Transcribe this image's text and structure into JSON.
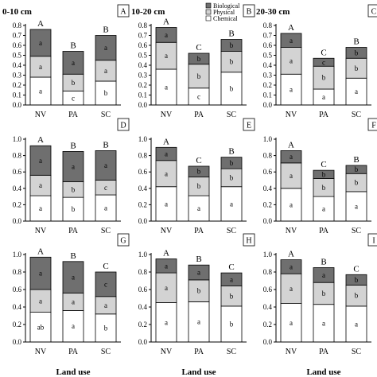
{
  "chart_data": {
    "type": "stacked-bar",
    "stack_order": [
      "Chemical",
      "Physical",
      "Biological"
    ],
    "legend": [
      "Biological",
      "Physical",
      "Chemical"
    ],
    "colors": {
      "Biological": "#6f6f6f",
      "Physical": "#d3d3d3",
      "Chemical": "#ffffff"
    },
    "categories": [
      "NV",
      "PA",
      "SC"
    ],
    "depths": [
      "0-10 cm",
      "10-20 cm",
      "20-30 cm"
    ],
    "xlabel": "Land use",
    "panels": [
      {
        "id": "A",
        "row": 0,
        "col": 0,
        "ylim": [
          0,
          0.8
        ],
        "yticks": [
          "0.0",
          "0.1",
          "0.2",
          "0.3",
          "0.4",
          "0.5",
          "0.6",
          "0.7",
          "0.8"
        ],
        "bars": [
          {
            "cat": "NV",
            "top": "A",
            "values": [
              0.28,
              0.21,
              0.27
            ],
            "letters": [
              "a",
              "a",
              "a"
            ]
          },
          {
            "cat": "PA",
            "top": "B",
            "values": [
              0.14,
              0.17,
              0.23
            ],
            "letters": [
              "c",
              "b",
              "a"
            ]
          },
          {
            "cat": "SC",
            "top": "B",
            "values": [
              0.24,
              0.21,
              0.25
            ],
            "letters": [
              "b",
              "a",
              "a"
            ]
          }
        ]
      },
      {
        "id": "B",
        "row": 0,
        "col": 1,
        "ylim": [
          0,
          0.8
        ],
        "yticks": [
          "0.0",
          "0.1",
          "0.2",
          "0.3",
          "0.4",
          "0.5",
          "0.6",
          "0.7",
          "0.8"
        ],
        "bars": [
          {
            "cat": "NV",
            "top": "A",
            "values": [
              0.36,
              0.27,
              0.15
            ],
            "letters": [
              "a",
              "a",
              "a"
            ]
          },
          {
            "cat": "PA",
            "top": "C",
            "values": [
              0.17,
              0.24,
              0.11
            ],
            "letters": [
              "c",
              "b",
              "b"
            ]
          },
          {
            "cat": "SC",
            "top": "B",
            "values": [
              0.33,
              0.21,
              0.12
            ],
            "letters": [
              "b",
              "b",
              "b"
            ]
          }
        ]
      },
      {
        "id": "C",
        "row": 0,
        "col": 2,
        "ylim": [
          0,
          0.8
        ],
        "yticks": [
          "0.0",
          "0.1",
          "0.2",
          "0.3",
          "0.4",
          "0.5",
          "0.6",
          "0.7",
          "0.8"
        ],
        "bars": [
          {
            "cat": "NV",
            "top": "A",
            "values": [
              0.31,
              0.27,
              0.14
            ],
            "letters": [
              "a",
              "a",
              "a"
            ]
          },
          {
            "cat": "PA",
            "top": "C",
            "values": [
              0.16,
              0.23,
              0.08
            ],
            "letters": [
              "a",
              "b",
              "c"
            ]
          },
          {
            "cat": "SC",
            "top": "B",
            "values": [
              0.27,
              0.2,
              0.11
            ],
            "letters": [
              "a",
              "b",
              "b"
            ]
          }
        ]
      },
      {
        "id": "D",
        "row": 1,
        "col": 0,
        "ylim": [
          0,
          1.0
        ],
        "yticks": [
          "0.0",
          "0.2",
          "0.4",
          "0.6",
          "0.8",
          "1.0"
        ],
        "bars": [
          {
            "cat": "NV",
            "top": "A",
            "values": [
              0.31,
              0.25,
              0.36
            ],
            "letters": [
              "a",
              "a",
              "a"
            ]
          },
          {
            "cat": "PA",
            "top": "B",
            "values": [
              0.29,
              0.19,
              0.37
            ],
            "letters": [
              "b",
              "b",
              "a"
            ]
          },
          {
            "cat": "SC",
            "top": "B",
            "values": [
              0.32,
              0.18,
              0.36
            ],
            "letters": [
              "a",
              "c",
              "a"
            ]
          }
        ]
      },
      {
        "id": "E",
        "row": 1,
        "col": 1,
        "ylim": [
          0,
          1.0
        ],
        "yticks": [
          "0.0",
          "0.2",
          "0.4",
          "0.6",
          "0.8",
          "1.0"
        ],
        "bars": [
          {
            "cat": "NV",
            "top": "A",
            "values": [
              0.42,
              0.32,
              0.16
            ],
            "letters": [
              "a",
              "a",
              "a"
            ]
          },
          {
            "cat": "PA",
            "top": "C",
            "values": [
              0.31,
              0.23,
              0.13
            ],
            "letters": [
              "a",
              "b",
              "b"
            ]
          },
          {
            "cat": "SC",
            "top": "B",
            "values": [
              0.42,
              0.22,
              0.14
            ],
            "letters": [
              "a",
              "b",
              "b"
            ]
          }
        ]
      },
      {
        "id": "F",
        "row": 1,
        "col": 2,
        "ylim": [
          0,
          1.0
        ],
        "yticks": [
          "0.0",
          "0.2",
          "0.4",
          "0.6",
          "0.8",
          "1.0"
        ],
        "bars": [
          {
            "cat": "NV",
            "top": "A",
            "values": [
              0.4,
              0.31,
              0.15
            ],
            "letters": [
              "a",
              "a",
              "a"
            ]
          },
          {
            "cat": "PA",
            "top": "C",
            "values": [
              0.3,
              0.22,
              0.1
            ],
            "letters": [
              "a",
              "b",
              "b"
            ]
          },
          {
            "cat": "SC",
            "top": "B",
            "values": [
              0.36,
              0.22,
              0.1
            ],
            "letters": [
              "a",
              "b",
              "b"
            ]
          }
        ]
      },
      {
        "id": "G",
        "row": 2,
        "col": 0,
        "ylim": [
          0,
          1.0
        ],
        "yticks": [
          "0.0",
          "0.2",
          "0.4",
          "0.6",
          "0.8",
          "1.0"
        ],
        "bars": [
          {
            "cat": "NV",
            "top": "A",
            "values": [
              0.34,
              0.26,
              0.37
            ],
            "letters": [
              "ab",
              "a",
              "a"
            ]
          },
          {
            "cat": "PA",
            "top": "B",
            "values": [
              0.36,
              0.2,
              0.36
            ],
            "letters": [
              "a",
              "a",
              "a"
            ]
          },
          {
            "cat": "SC",
            "top": "C",
            "values": [
              0.32,
              0.2,
              0.28
            ],
            "letters": [
              "b",
              "a",
              "c"
            ]
          }
        ]
      },
      {
        "id": "H",
        "row": 2,
        "col": 1,
        "ylim": [
          0,
          1.0
        ],
        "yticks": [
          "0.0",
          "0.2",
          "0.4",
          "0.6",
          "0.8",
          "1.0"
        ],
        "bars": [
          {
            "cat": "NV",
            "top": "A",
            "values": [
              0.45,
              0.34,
              0.16
            ],
            "letters": [
              "a",
              "a",
              "a"
            ]
          },
          {
            "cat": "PA",
            "top": "B",
            "values": [
              0.46,
              0.25,
              0.17
            ],
            "letters": [
              "a",
              "b",
              "a"
            ]
          },
          {
            "cat": "SC",
            "top": "C",
            "values": [
              0.41,
              0.23,
              0.15
            ],
            "letters": [
              "b",
              "b",
              "a"
            ]
          }
        ]
      },
      {
        "id": "I",
        "row": 2,
        "col": 2,
        "ylim": [
          0,
          1.0
        ],
        "yticks": [
          "0.0",
          "0.2",
          "0.4",
          "0.6",
          "0.8",
          "1.0"
        ],
        "bars": [
          {
            "cat": "NV",
            "top": "A",
            "values": [
              0.44,
              0.34,
              0.16
            ],
            "letters": [
              "a",
              "a",
              "a"
            ]
          },
          {
            "cat": "PA",
            "top": "B",
            "values": [
              0.43,
              0.25,
              0.17
            ],
            "letters": [
              "a",
              "b",
              "a"
            ]
          },
          {
            "cat": "SC",
            "top": "C",
            "values": [
              0.41,
              0.24,
              0.12
            ],
            "letters": [
              "a",
              "b",
              "b"
            ]
          }
        ]
      }
    ]
  }
}
